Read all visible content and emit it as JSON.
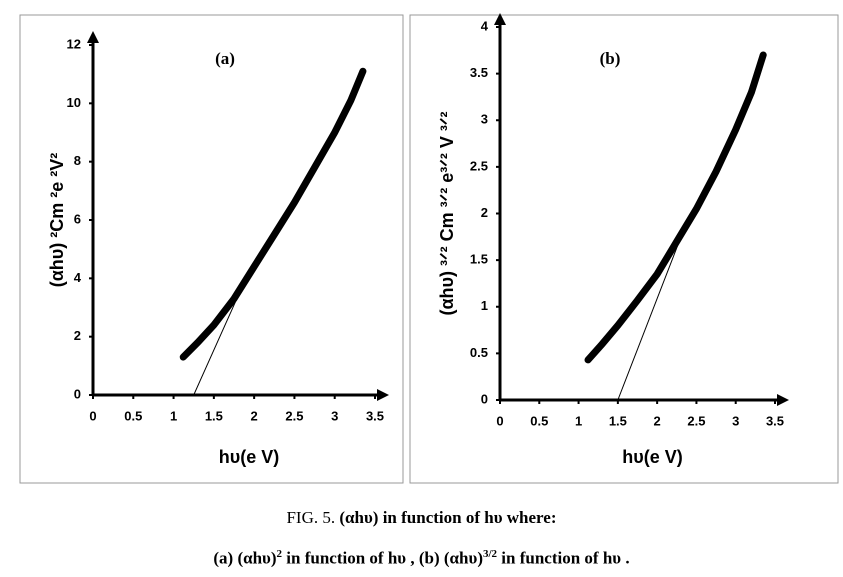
{
  "chart_data": [
    {
      "type": "line",
      "label": "(a)",
      "xlabel": "hυ(e V)",
      "ylabel": "(αhυ) ²Cm ²e ²V²",
      "xlim": [
        0,
        3.5
      ],
      "xticks": [
        0,
        0.5,
        1,
        1.5,
        2,
        2.5,
        3,
        3.5
      ],
      "ylim": [
        0,
        12
      ],
      "yticks": [
        0,
        2,
        4,
        6,
        8,
        10,
        12
      ],
      "color": "#000000",
      "curve": {
        "x": [
          1.12,
          1.3,
          1.5,
          1.75,
          2.0,
          2.25,
          2.5,
          2.75,
          3.0,
          3.2,
          3.35
        ],
        "y": [
          1.3,
          1.8,
          2.4,
          3.3,
          4.4,
          5.5,
          6.6,
          7.8,
          9.0,
          10.1,
          11.1
        ]
      },
      "tangent": {
        "x": [
          1.25,
          1.85
        ],
        "y": [
          0,
          3.7
        ]
      }
    },
    {
      "type": "line",
      "label": "(b)",
      "xlabel": "hυ(e V)",
      "ylabel": "(αhυ) ³ᐟ² Cm ³ᐟ² e³ᐟ² V ³ᐟ²",
      "xlim": [
        0,
        3.5
      ],
      "xticks": [
        0,
        0.5,
        1,
        1.5,
        2,
        2.5,
        3,
        3.5
      ],
      "ylim": [
        0,
        4
      ],
      "yticks": [
        0,
        0.5,
        1,
        1.5,
        2,
        2.5,
        3,
        3.5,
        4
      ],
      "color": "#000000",
      "curve": {
        "x": [
          1.12,
          1.3,
          1.5,
          1.75,
          2.0,
          2.25,
          2.5,
          2.75,
          3.0,
          3.2,
          3.35
        ],
        "y": [
          0.43,
          0.6,
          0.8,
          1.07,
          1.35,
          1.7,
          2.05,
          2.45,
          2.9,
          3.3,
          3.7
        ]
      },
      "tangent": {
        "x": [
          1.5,
          2.35
        ],
        "y": [
          0,
          1.85
        ]
      }
    }
  ],
  "caption": {
    "line1": [
      "FIG. 5.",
      " (αhυ) in function of hυ where:"
    ],
    "line2": [
      "(a)  (αhυ)",
      "2",
      " in function of hυ , (b) (αhυ)",
      "3/2",
      " in function of hυ ."
    ]
  }
}
